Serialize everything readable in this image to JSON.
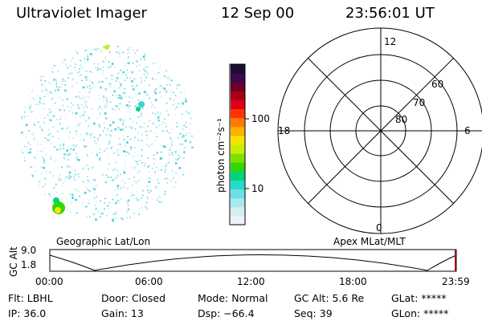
{
  "header": {
    "instrument": "Ultraviolet Imager",
    "date": "12 Sep 00",
    "time": "23:56:01 UT"
  },
  "colorbar": {
    "label": "photon cm⁻²s⁻¹",
    "ticks": [
      "100",
      "10"
    ],
    "colors": [
      "#1a0f33",
      "#3a0a4a",
      "#6a0028",
      "#a80010",
      "#e00018",
      "#ff3300",
      "#ff7a00",
      "#ffb000",
      "#f6e400",
      "#c8ee00",
      "#7ee000",
      "#2ed800",
      "#00d47a",
      "#22dcc8",
      "#6ce0e6",
      "#a8e8ee",
      "#d4eef2",
      "#eef4f6"
    ]
  },
  "polar_plot": {
    "mlt_labels": [
      "12",
      "18",
      "6",
      "0"
    ],
    "lat_labels": [
      "60",
      "70",
      "80"
    ],
    "label": "Apex MLat/MLT"
  },
  "image_panel": {
    "label": "Geographic Lat/Lon"
  },
  "altitude_strip": {
    "axis_label": "GC Alt",
    "y_max": "9.0",
    "y_min": "1.8",
    "time_ticks": [
      "00:00",
      "06:00",
      "12:00",
      "18:00",
      "23:59"
    ]
  },
  "info_rows": [
    [
      "Flt: LBHL",
      "Door: Closed",
      "Mode: Normal",
      "GC Alt: 5.6 Re",
      "GLat: *****"
    ],
    [
      "IP: 36.0",
      "Gain: 13",
      "Dsp: −66.4",
      "Seq: 39",
      "GLon: *****"
    ]
  ]
}
